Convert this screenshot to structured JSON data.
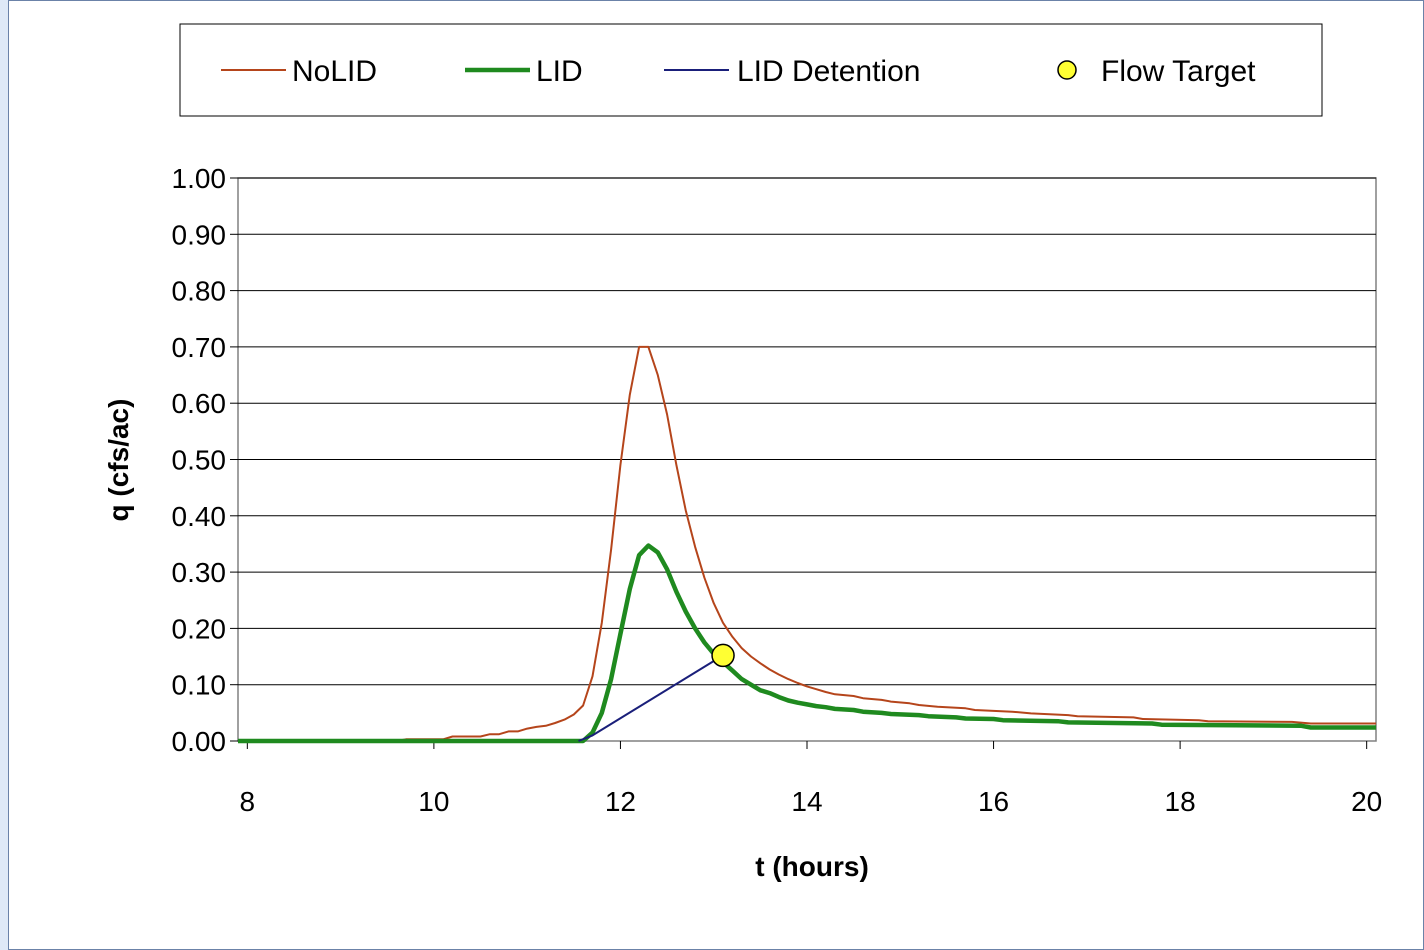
{
  "chart_data": {
    "type": "line",
    "xlabel": "t  (hours)",
    "ylabel": "q (cfs/ac)",
    "xlim": [
      7.9,
      20.1
    ],
    "ylim": [
      0,
      1.0
    ],
    "x_ticks": [
      8,
      10,
      12,
      14,
      16,
      18,
      20
    ],
    "y_ticks": [
      0.0,
      0.1,
      0.2,
      0.3,
      0.4,
      0.5,
      0.6,
      0.7,
      0.8,
      0.9,
      1.0
    ],
    "x_tick_labels": [
      "8",
      "10",
      "12",
      "14",
      "16",
      "18",
      "20"
    ],
    "y_tick_labels": [
      "0.00",
      "0.10",
      "0.20",
      "0.30",
      "0.40",
      "0.50",
      "0.60",
      "0.70",
      "0.80",
      "0.90",
      "1.00"
    ],
    "grid": "horizontal",
    "legend_position": "top",
    "series": [
      {
        "name": "NoLID",
        "color": "#b5451b",
        "stroke": "thin",
        "points": [
          [
            7.9,
            0
          ],
          [
            9.6,
            0
          ],
          [
            9.7,
            0.003
          ],
          [
            10.1,
            0.003
          ],
          [
            10.2,
            0.008
          ],
          [
            10.5,
            0.008
          ],
          [
            10.6,
            0.012
          ],
          [
            10.7,
            0.012
          ],
          [
            10.8,
            0.017
          ],
          [
            10.9,
            0.017
          ],
          [
            11.0,
            0.022
          ],
          [
            11.1,
            0.025
          ],
          [
            11.2,
            0.027
          ],
          [
            11.3,
            0.032
          ],
          [
            11.4,
            0.038
          ],
          [
            11.5,
            0.047
          ],
          [
            11.6,
            0.063
          ],
          [
            11.7,
            0.115
          ],
          [
            11.8,
            0.21
          ],
          [
            11.9,
            0.34
          ],
          [
            12.0,
            0.49
          ],
          [
            12.1,
            0.615
          ],
          [
            12.2,
            0.7
          ],
          [
            12.3,
            0.7
          ],
          [
            12.4,
            0.65
          ],
          [
            12.5,
            0.58
          ],
          [
            12.6,
            0.49
          ],
          [
            12.7,
            0.41
          ],
          [
            12.8,
            0.345
          ],
          [
            12.9,
            0.29
          ],
          [
            13.0,
            0.245
          ],
          [
            13.1,
            0.21
          ],
          [
            13.2,
            0.185
          ],
          [
            13.3,
            0.165
          ],
          [
            13.4,
            0.15
          ],
          [
            13.5,
            0.138
          ],
          [
            13.6,
            0.127
          ],
          [
            13.7,
            0.118
          ],
          [
            13.8,
            0.11
          ],
          [
            13.9,
            0.103
          ],
          [
            14.0,
            0.097
          ],
          [
            14.1,
            0.092
          ],
          [
            14.2,
            0.087
          ],
          [
            14.3,
            0.083
          ],
          [
            14.5,
            0.08
          ],
          [
            14.6,
            0.076
          ],
          [
            14.8,
            0.073
          ],
          [
            14.9,
            0.07
          ],
          [
            15.1,
            0.067
          ],
          [
            15.2,
            0.064
          ],
          [
            15.4,
            0.061
          ],
          [
            15.7,
            0.058
          ],
          [
            15.8,
            0.055
          ],
          [
            16.2,
            0.052
          ],
          [
            16.4,
            0.049
          ],
          [
            16.8,
            0.046
          ],
          [
            16.9,
            0.044
          ],
          [
            17.5,
            0.042
          ],
          [
            17.6,
            0.039
          ],
          [
            18.2,
            0.037
          ],
          [
            18.3,
            0.035
          ],
          [
            19.2,
            0.034
          ],
          [
            19.4,
            0.031
          ],
          [
            20.1,
            0.031
          ]
        ]
      },
      {
        "name": "LID",
        "color": "#1f8a1f",
        "stroke": "thick",
        "points": [
          [
            7.9,
            0
          ],
          [
            11.6,
            0
          ],
          [
            11.7,
            0.015
          ],
          [
            11.8,
            0.05
          ],
          [
            11.9,
            0.11
          ],
          [
            12.0,
            0.19
          ],
          [
            12.1,
            0.27
          ],
          [
            12.2,
            0.33
          ],
          [
            12.3,
            0.347
          ],
          [
            12.4,
            0.335
          ],
          [
            12.5,
            0.305
          ],
          [
            12.6,
            0.265
          ],
          [
            12.7,
            0.23
          ],
          [
            12.8,
            0.2
          ],
          [
            12.9,
            0.175
          ],
          [
            13.0,
            0.155
          ],
          [
            13.1,
            0.14
          ],
          [
            13.2,
            0.125
          ],
          [
            13.3,
            0.11
          ],
          [
            13.4,
            0.1
          ],
          [
            13.5,
            0.09
          ],
          [
            13.6,
            0.085
          ],
          [
            13.7,
            0.078
          ],
          [
            13.8,
            0.072
          ],
          [
            13.9,
            0.068
          ],
          [
            14.0,
            0.065
          ],
          [
            14.1,
            0.062
          ],
          [
            14.2,
            0.06
          ],
          [
            14.3,
            0.057
          ],
          [
            14.5,
            0.055
          ],
          [
            14.6,
            0.052
          ],
          [
            14.8,
            0.05
          ],
          [
            14.9,
            0.048
          ],
          [
            15.2,
            0.046
          ],
          [
            15.3,
            0.044
          ],
          [
            15.6,
            0.042
          ],
          [
            15.7,
            0.04
          ],
          [
            16.0,
            0.039
          ],
          [
            16.1,
            0.037
          ],
          [
            16.7,
            0.035
          ],
          [
            16.8,
            0.033
          ],
          [
            17.7,
            0.031
          ],
          [
            17.8,
            0.029
          ],
          [
            19.3,
            0.027
          ],
          [
            19.4,
            0.024
          ],
          [
            20.1,
            0.024
          ]
        ]
      },
      {
        "name": "LID Detention",
        "color": "#1a1f7a",
        "stroke": "thin",
        "points": [
          [
            11.55,
            0
          ],
          [
            11.7,
            0.01
          ],
          [
            13.1,
            0.152
          ]
        ]
      },
      {
        "name": "Flow Target",
        "color": "#ffff33",
        "marker": "circle",
        "points": [
          [
            13.1,
            0.152
          ]
        ]
      }
    ]
  }
}
